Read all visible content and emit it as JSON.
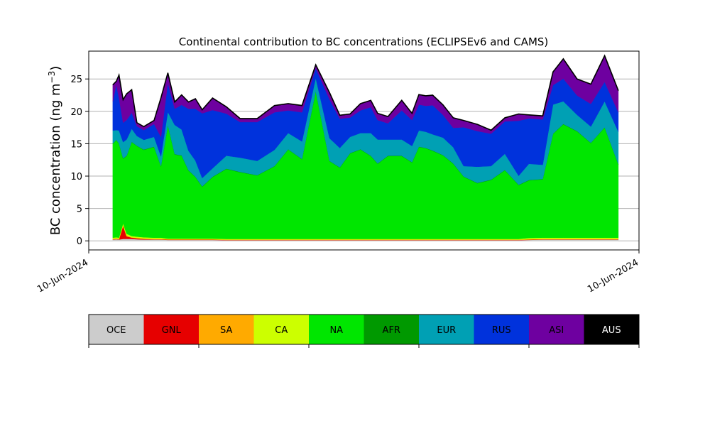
{
  "chart_data": {
    "type": "area",
    "title": "Continental contribution to BC concentrations (ECLIPSEv6 and CAMS)",
    "ylabel": "BC concentration (ng m",
    "ylabel_sup": "−3",
    "ylabel_close": ")",
    "xlabel": "",
    "x_ticks": [
      "10-Jun-2024",
      "10-Jun-2024"
    ],
    "y_ticks": [
      0,
      5,
      10,
      15,
      20,
      25
    ],
    "ylim": [
      -1.4,
      29.3
    ],
    "grid": "horizontal",
    "stacked": true,
    "x": [
      0.7,
      0.8,
      0.88,
      1.0,
      1.1,
      1.25,
      1.4,
      1.6,
      1.9,
      2.1,
      2.3,
      2.5,
      2.7,
      2.9,
      3.1,
      3.3,
      3.6,
      4.0,
      4.4,
      4.9,
      5.4,
      5.8,
      6.2,
      6.6,
      7.0,
      7.3,
      7.6,
      7.9,
      8.2,
      8.4,
      8.7,
      9.1,
      9.4,
      9.6,
      9.8,
      10.0,
      10.3,
      10.6,
      10.9,
      11.3,
      11.7,
      12.1,
      12.5,
      12.8,
      13.2,
      13.5,
      13.8,
      14.2,
      14.6,
      15.0,
      15.4
    ],
    "series": [
      {
        "name": "OCE",
        "color": "#cccccc",
        "values": [
          0.2,
          0.25,
          0.2,
          0.3,
          0.3,
          0.3,
          0.25,
          0.2,
          0.2,
          0.2,
          0.15,
          0.15,
          0.15,
          0.15,
          0.15,
          0.15,
          0.15,
          0.1,
          0.1,
          0.1,
          0.1,
          0.1,
          0.1,
          0.1,
          0.1,
          0.1,
          0.1,
          0.1,
          0.1,
          0.1,
          0.1,
          0.1,
          0.1,
          0.1,
          0.1,
          0.1,
          0.1,
          0.1,
          0.1,
          0.1,
          0.1,
          0.1,
          0.1,
          0.15,
          0.2,
          0.2,
          0.2,
          0.2,
          0.2,
          0.2,
          0.2
        ]
      },
      {
        "name": "GNL",
        "color": "#e60000",
        "values": [
          0.05,
          0.05,
          0.05,
          2.0,
          0.4,
          0.2,
          0.15,
          0.1,
          0.05,
          0.05,
          0.05,
          0.05,
          0.05,
          0.05,
          0.05,
          0.05,
          0.05,
          0.05,
          0.05,
          0.05,
          0.05,
          0.05,
          0.05,
          0.05,
          0.05,
          0.05,
          0.05,
          0.05,
          0.05,
          0.05,
          0.05,
          0.05,
          0.05,
          0.05,
          0.05,
          0.05,
          0.05,
          0.05,
          0.05,
          0.05,
          0.05,
          0.05,
          0.05,
          0.05,
          0.05,
          0.05,
          0.05,
          0.05,
          0.05,
          0.05,
          0.05
        ]
      },
      {
        "name": "SA",
        "color": "#ffaa00",
        "values": [
          0.05,
          0.05,
          0.05,
          0.2,
          0.1,
          0.05,
          0.05,
          0.05,
          0.05,
          0.05,
          0.05,
          0.05,
          0.05,
          0.05,
          0.05,
          0.05,
          0.05,
          0.05,
          0.05,
          0.05,
          0.05,
          0.05,
          0.05,
          0.05,
          0.05,
          0.05,
          0.05,
          0.05,
          0.05,
          0.05,
          0.05,
          0.05,
          0.05,
          0.05,
          0.05,
          0.05,
          0.05,
          0.05,
          0.05,
          0.05,
          0.05,
          0.05,
          0.05,
          0.05,
          0.05,
          0.05,
          0.05,
          0.05,
          0.05,
          0.05,
          0.05
        ]
      },
      {
        "name": "CA",
        "color": "#ccff00",
        "values": [
          0.2,
          0.2,
          0.2,
          0.2,
          0.3,
          0.2,
          0.2,
          0.2,
          0.2,
          0.2,
          0.1,
          0.1,
          0.1,
          0.1,
          0.1,
          0.1,
          0.1,
          0.1,
          0.1,
          0.1,
          0.1,
          0.1,
          0.1,
          0.1,
          0.1,
          0.1,
          0.1,
          0.1,
          0.1,
          0.1,
          0.1,
          0.1,
          0.1,
          0.1,
          0.1,
          0.1,
          0.1,
          0.1,
          0.1,
          0.1,
          0.1,
          0.1,
          0.1,
          0.2,
          0.2,
          0.2,
          0.2,
          0.2,
          0.2,
          0.2,
          0.2
        ]
      },
      {
        "name": "NA",
        "color": "#00e600",
        "values": [
          14.5,
          15.0,
          14.5,
          10.0,
          12.0,
          14.5,
          14.0,
          13.5,
          14.0,
          11.0,
          17.5,
          13.0,
          12.8,
          10.5,
          9.5,
          8.0,
          9.5,
          10.8,
          10.3,
          9.8,
          11.2,
          13.8,
          12.3,
          22.8,
          12.0,
          11.0,
          13.2,
          13.8,
          12.8,
          11.6,
          12.8,
          12.8,
          11.8,
          14.2,
          14.0,
          13.6,
          12.9,
          11.6,
          9.6,
          8.6,
          9.1,
          10.6,
          8.3,
          8.9,
          9.0,
          16.0,
          17.5,
          16.4,
          14.6,
          17.0,
          11.3
        ]
      },
      {
        "name": "AFR",
        "color": "#009900",
        "values": [
          0.05,
          0.05,
          0.05,
          0.05,
          0.05,
          0.05,
          0.05,
          0.05,
          0.05,
          0.05,
          0.05,
          0.05,
          0.05,
          0.05,
          0.05,
          0.05,
          0.05,
          0.05,
          0.05,
          0.05,
          0.05,
          0.05,
          0.05,
          0.05,
          0.05,
          0.05,
          0.05,
          0.05,
          0.05,
          0.05,
          0.05,
          0.05,
          0.05,
          0.05,
          0.05,
          0.05,
          0.05,
          0.05,
          0.05,
          0.05,
          0.05,
          0.05,
          0.05,
          0.05,
          0.05,
          0.05,
          0.05,
          0.05,
          0.05,
          0.05,
          0.05
        ]
      },
      {
        "name": "EUR",
        "color": "#00a0b4",
        "values": [
          2.0,
          1.5,
          2.0,
          2.5,
          2.5,
          2.0,
          1.5,
          1.5,
          1.5,
          1.5,
          2.0,
          4.5,
          4.0,
          3.0,
          2.5,
          1.3,
          1.3,
          2.0,
          2.2,
          2.2,
          2.5,
          2.5,
          2.7,
          2.0,
          3.5,
          3.0,
          2.5,
          2.5,
          3.5,
          3.7,
          2.5,
          2.5,
          2.5,
          2.5,
          2.5,
          2.5,
          2.7,
          2.5,
          1.6,
          2.5,
          2.1,
          2.5,
          1.4,
          2.5,
          2.2,
          4.5,
          3.5,
          2.5,
          2.5,
          4.0,
          5.0
        ]
      },
      {
        "name": "RUS",
        "color": "#0032dc",
        "values": [
          4.5,
          7.0,
          5.0,
          3.0,
          3.0,
          2.5,
          1.5,
          1.5,
          2.0,
          3.0,
          4.5,
          2.5,
          3.8,
          6.5,
          8.0,
          10.0,
          9.0,
          6.5,
          5.5,
          6.0,
          5.8,
          3.5,
          4.5,
          1.5,
          6.0,
          4.5,
          3.0,
          3.5,
          4.0,
          3.0,
          2.5,
          4.5,
          4.0,
          4.0,
          4.0,
          4.5,
          3.5,
          3.0,
          6.0,
          5.5,
          5.0,
          5.0,
          8.5,
          7.0,
          7.0,
          3.0,
          3.5,
          3.0,
          3.5,
          3.0,
          3.0
        ]
      },
      {
        "name": "ASI",
        "color": "#6e00a0",
        "values": [
          2.5,
          0.5,
          3.5,
          3.5,
          4.0,
          3.5,
          0.5,
          0.5,
          0.5,
          6.0,
          1.5,
          1.0,
          1.5,
          1.0,
          1.5,
          0.5,
          1.8,
          1.0,
          0.5,
          0.5,
          1.0,
          1.0,
          1.0,
          0.5,
          1.0,
          0.5,
          0.5,
          1.0,
          1.0,
          1.0,
          1.0,
          1.5,
          1.0,
          1.5,
          1.5,
          1.5,
          1.5,
          1.5,
          1.0,
          1.0,
          0.5,
          0.5,
          1.0,
          0.5,
          0.5,
          2.0,
          3.0,
          2.5,
          3.0,
          4.0,
          3.3
        ]
      },
      {
        "name": "AUS",
        "color": "#000000",
        "values": [
          0.05,
          0.05,
          0.05,
          0.05,
          0.05,
          0.05,
          0.05,
          0.05,
          0.05,
          0.05,
          0.05,
          0.05,
          0.05,
          0.05,
          0.05,
          0.05,
          0.05,
          0.05,
          0.05,
          0.05,
          0.05,
          0.05,
          0.05,
          0.05,
          0.05,
          0.05,
          0.05,
          0.05,
          0.05,
          0.05,
          0.05,
          0.05,
          0.05,
          0.05,
          0.05,
          0.05,
          0.05,
          0.05,
          0.05,
          0.05,
          0.05,
          0.05,
          0.05,
          0.05,
          0.05,
          0.05,
          0.05,
          0.05,
          0.05,
          0.05,
          0.05
        ]
      }
    ],
    "legend": {
      "placement": "bottom",
      "entries": [
        {
          "name": "OCE",
          "color": "#cccccc",
          "text_color": "#000000"
        },
        {
          "name": "GNL",
          "color": "#e60000",
          "text_color": "#000000"
        },
        {
          "name": "SA",
          "color": "#ffaa00",
          "text_color": "#000000"
        },
        {
          "name": "CA",
          "color": "#ccff00",
          "text_color": "#000000"
        },
        {
          "name": "NA",
          "color": "#00e600",
          "text_color": "#000000"
        },
        {
          "name": "AFR",
          "color": "#009900",
          "text_color": "#000000"
        },
        {
          "name": "EUR",
          "color": "#00a0b4",
          "text_color": "#000000"
        },
        {
          "name": "RUS",
          "color": "#0032dc",
          "text_color": "#000000"
        },
        {
          "name": "ASI",
          "color": "#6e00a0",
          "text_color": "#000000"
        },
        {
          "name": "AUS",
          "color": "#000000",
          "text_color": "#ffffff"
        }
      ]
    }
  }
}
